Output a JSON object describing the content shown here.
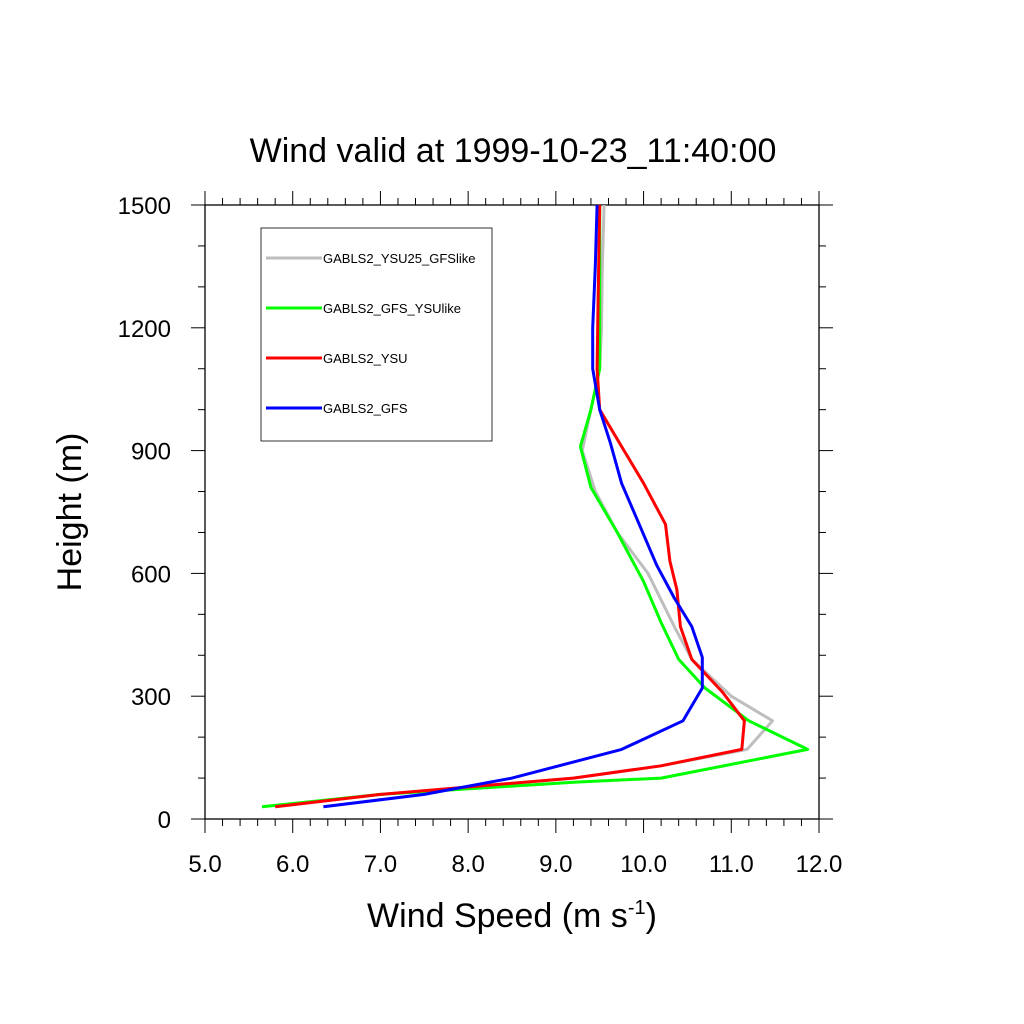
{
  "chart_data": {
    "type": "line",
    "title": "Wind valid at 1999-10-23_11:40:00",
    "xlabel": "Wind Speed (m s",
    "xlabel_sup": "-1",
    "xlabel_end": ")",
    "ylabel": "Height (m)",
    "xlim": [
      5.0,
      12.0
    ],
    "ylim": [
      0,
      1500
    ],
    "x_ticks": [
      "5.0",
      "6.0",
      "7.0",
      "8.0",
      "9.0",
      "10.0",
      "11.0",
      "12.0"
    ],
    "y_ticks": [
      "0",
      "300",
      "600",
      "900",
      "1200",
      "1500"
    ],
    "grid": false,
    "legend_position": "top-left",
    "series": [
      {
        "name": "GABLS2_YSU25_GFSlike",
        "color": "#bebebe",
        "x": [
          5.8,
          7.0,
          9.2,
          10.2,
          11.18,
          11.47,
          11.0,
          10.55,
          10.35,
          10.05,
          9.7,
          9.45,
          9.3,
          9.4,
          9.5,
          9.52,
          9.53,
          9.55
        ],
        "y": [
          30,
          60,
          100,
          130,
          170,
          240,
          300,
          390,
          470,
          600,
          700,
          800,
          900,
          1000,
          1100,
          1200,
          1350,
          1500
        ]
      },
      {
        "name": "GABLS2_GFS_YSUlike",
        "color": "#00ff00",
        "x": [
          5.65,
          7.0,
          9.2,
          10.2,
          11.87,
          11.2,
          10.7,
          10.4,
          10.2,
          10.0,
          9.7,
          9.4,
          9.28,
          9.4,
          9.5,
          9.5,
          9.5,
          9.5
        ],
        "y": [
          30,
          60,
          90,
          100,
          170,
          240,
          320,
          390,
          480,
          580,
          700,
          810,
          910,
          1000,
          1100,
          1200,
          1350,
          1500
        ]
      },
      {
        "name": "GABLS2_YSU",
        "color": "#ff0000",
        "x": [
          5.8,
          7.0,
          9.2,
          10.2,
          11.12,
          11.15,
          10.9,
          10.55,
          10.42,
          10.38,
          10.3,
          10.25,
          10.0,
          9.75,
          9.5,
          9.47,
          9.48,
          9.5
        ],
        "y": [
          30,
          60,
          100,
          130,
          170,
          240,
          310,
          390,
          470,
          560,
          630,
          720,
          820,
          910,
          1000,
          1100,
          1250,
          1500
        ]
      },
      {
        "name": "GABLS2_GFS",
        "color": "#0000ff",
        "x": [
          6.35,
          7.5,
          8.5,
          9.75,
          10.45,
          10.67,
          10.67,
          10.55,
          10.35,
          10.15,
          9.95,
          9.75,
          9.62,
          9.5,
          9.42,
          9.42,
          9.45,
          9.47
        ],
        "y": [
          30,
          60,
          100,
          170,
          240,
          320,
          395,
          470,
          540,
          620,
          720,
          820,
          920,
          1000,
          1100,
          1200,
          1350,
          1500
        ]
      }
    ]
  }
}
